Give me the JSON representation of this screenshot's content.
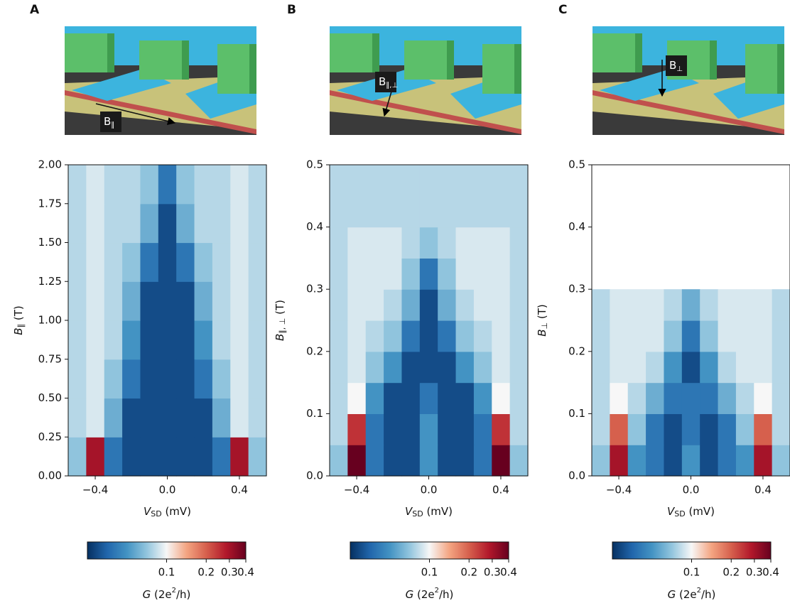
{
  "chart_data": [
    {
      "type": "heatmap",
      "panel_label": "A",
      "inset_label": [
        "B",
        "∥"
      ],
      "xlabel": [
        "V",
        "SD",
        " (mV)"
      ],
      "ylabel": [
        "B",
        "∥",
        " (T)"
      ],
      "x": [
        -0.5,
        -0.4,
        -0.3,
        -0.2,
        -0.1,
        0,
        0.1,
        0.2,
        0.3,
        0.4,
        0.5
      ],
      "y": [
        0.125,
        0.375,
        0.625,
        0.875,
        1.125,
        1.375,
        1.625,
        1.875
      ],
      "values": [
        [
          0.07,
          0.3,
          0.04,
          0.03,
          0.03,
          0.03,
          0.03,
          0.03,
          0.04,
          0.3,
          0.07
        ],
        [
          0.08,
          0.09,
          0.06,
          0.03,
          0.03,
          0.03,
          0.03,
          0.03,
          0.06,
          0.09,
          0.08
        ],
        [
          0.08,
          0.09,
          0.07,
          0.04,
          0.03,
          0.03,
          0.03,
          0.04,
          0.07,
          0.09,
          0.08
        ],
        [
          0.08,
          0.09,
          0.08,
          0.05,
          0.03,
          0.03,
          0.03,
          0.05,
          0.08,
          0.09,
          0.08
        ],
        [
          0.08,
          0.09,
          0.08,
          0.06,
          0.03,
          0.03,
          0.03,
          0.06,
          0.08,
          0.09,
          0.08
        ],
        [
          0.08,
          0.09,
          0.08,
          0.07,
          0.04,
          0.03,
          0.04,
          0.07,
          0.08,
          0.09,
          0.08
        ],
        [
          0.08,
          0.09,
          0.08,
          0.08,
          0.06,
          0.03,
          0.06,
          0.08,
          0.08,
          0.09,
          0.08
        ],
        [
          0.08,
          0.09,
          0.08,
          0.08,
          0.07,
          0.04,
          0.07,
          0.08,
          0.08,
          0.09,
          0.08
        ]
      ],
      "xlim": [
        -0.55,
        0.55
      ],
      "ylim": [
        0,
        2.0
      ],
      "xticks": [
        {
          "value": -0.4,
          "label": "−0.4"
        },
        {
          "value": 0,
          "label": "0.0"
        },
        0.4
      ],
      "yticks": [
        {
          "value": 0,
          "label": "0.00"
        },
        0.25,
        {
          "value": 0.5,
          "label": "0.50"
        },
        0.75,
        {
          "value": 1,
          "label": "1.00"
        },
        1.25,
        {
          "value": 1.5,
          "label": "1.50"
        },
        1.75,
        {
          "value": 2,
          "label": "2.00"
        }
      ],
      "colorbar": {
        "clim": [
          0.025,
          0.4
        ],
        "log": true,
        "ticks": [
          0.1,
          0.2,
          0.3,
          0.4
        ],
        "label": [
          "G",
          " (2e",
          "2",
          "/h)"
        ]
      },
      "colormap": [
        "#053061",
        "#2166ac",
        "#4393c3",
        "#92c5de",
        "#f7f7f7",
        "#f4a582",
        "#d6604d",
        "#b2182b",
        "#67001f"
      ]
    },
    {
      "type": "heatmap",
      "panel_label": "B",
      "inset_label": [
        "B",
        "∥,⊥"
      ],
      "xlabel": [
        "V",
        "SD",
        " (mV)"
      ],
      "ylabel": [
        "B",
        "∥, ⊥",
        " (T)"
      ],
      "x": [
        -0.5,
        -0.4,
        -0.3,
        -0.2,
        -0.1,
        0,
        0.1,
        0.2,
        0.3,
        0.4,
        0.5
      ],
      "y": [
        0.025,
        0.075,
        0.125,
        0.175,
        0.225,
        0.275,
        0.325,
        0.375,
        0.425,
        0.475
      ],
      "values": [
        [
          0.07,
          0.4,
          0.04,
          0.03,
          0.03,
          0.05,
          0.03,
          0.03,
          0.04,
          0.4,
          0.07
        ],
        [
          0.08,
          0.25,
          0.04,
          0.03,
          0.03,
          0.05,
          0.03,
          0.03,
          0.04,
          0.25,
          0.08
        ],
        [
          0.08,
          0.1,
          0.05,
          0.03,
          0.03,
          0.04,
          0.03,
          0.03,
          0.05,
          0.1,
          0.08
        ],
        [
          0.08,
          0.09,
          0.07,
          0.05,
          0.03,
          0.03,
          0.03,
          0.05,
          0.07,
          0.09,
          0.08
        ],
        [
          0.08,
          0.09,
          0.08,
          0.07,
          0.04,
          0.03,
          0.04,
          0.07,
          0.08,
          0.09,
          0.08
        ],
        [
          0.08,
          0.09,
          0.09,
          0.08,
          0.06,
          0.03,
          0.06,
          0.08,
          0.09,
          0.09,
          0.08
        ],
        [
          0.08,
          0.09,
          0.09,
          0.09,
          0.07,
          0.04,
          0.07,
          0.09,
          0.09,
          0.09,
          0.08
        ],
        [
          0.08,
          0.09,
          0.09,
          0.09,
          0.08,
          0.07,
          0.08,
          0.09,
          0.09,
          0.09,
          0.08
        ],
        [
          0.08,
          0.08,
          0.08,
          0.08,
          0.08,
          0.08,
          0.08,
          0.08,
          0.08,
          0.08,
          0.08
        ],
        [
          0.08,
          0.08,
          0.08,
          0.08,
          0.08,
          0.08,
          0.08,
          0.08,
          0.08,
          0.08,
          0.08
        ]
      ],
      "xlim": [
        -0.55,
        0.55
      ],
      "ylim": [
        0,
        0.5
      ],
      "xticks": [
        {
          "value": -0.4,
          "label": "−0.4"
        },
        {
          "value": 0,
          "label": "0.0"
        },
        0.4
      ],
      "yticks": [
        {
          "value": 0,
          "label": "0.0"
        },
        0.1,
        0.2,
        0.3,
        0.4,
        0.5
      ],
      "colorbar": {
        "clim": [
          0.025,
          0.4
        ],
        "log": true,
        "ticks": [
          0.1,
          0.2,
          0.3,
          0.4
        ],
        "label": [
          "G",
          " (2e",
          "2",
          "/h)"
        ]
      },
      "colormap": [
        "#053061",
        "#2166ac",
        "#4393c3",
        "#92c5de",
        "#f7f7f7",
        "#f4a582",
        "#d6604d",
        "#b2182b",
        "#67001f"
      ]
    },
    {
      "type": "heatmap",
      "panel_label": "C",
      "inset_label": [
        "B",
        "⊥"
      ],
      "xlabel": [
        "V",
        "SD",
        " (mV)"
      ],
      "ylabel": [
        "B",
        "⊥",
        " (T)"
      ],
      "x": [
        -0.5,
        -0.4,
        -0.3,
        -0.2,
        -0.1,
        0,
        0.1,
        0.2,
        0.3,
        0.4,
        0.5
      ],
      "y": [
        0.025,
        0.075,
        0.125,
        0.175,
        0.225,
        0.275
      ],
      "values": [
        [
          0.07,
          0.3,
          0.05,
          0.04,
          0.03,
          0.05,
          0.03,
          0.04,
          0.05,
          0.3,
          0.07
        ],
        [
          0.08,
          0.2,
          0.07,
          0.04,
          0.03,
          0.04,
          0.03,
          0.04,
          0.07,
          0.2,
          0.08
        ],
        [
          0.08,
          0.1,
          0.08,
          0.06,
          0.04,
          0.04,
          0.04,
          0.06,
          0.08,
          0.1,
          0.08
        ],
        [
          0.08,
          0.09,
          0.09,
          0.08,
          0.05,
          0.03,
          0.05,
          0.08,
          0.09,
          0.09,
          0.08
        ],
        [
          0.08,
          0.09,
          0.09,
          0.09,
          0.07,
          0.04,
          0.07,
          0.09,
          0.09,
          0.09,
          0.08
        ],
        [
          0.08,
          0.09,
          0.09,
          0.09,
          0.08,
          0.06,
          0.08,
          0.09,
          0.09,
          0.09,
          0.08
        ]
      ],
      "xlim": [
        -0.55,
        0.55
      ],
      "ylim": [
        0,
        0.5
      ],
      "xticks": [
        {
          "value": -0.4,
          "label": "−0.4"
        },
        {
          "value": 0,
          "label": "0.0"
        },
        0.4
      ],
      "yticks": [
        {
          "value": 0,
          "label": "0.0"
        },
        0.1,
        0.2,
        0.3,
        0.4,
        0.5
      ],
      "colorbar": {
        "clim": [
          0.025,
          0.4
        ],
        "log": true,
        "ticks": [
          0.1,
          0.2,
          0.3,
          0.4
        ],
        "label": [
          "G",
          " (2e",
          "2",
          "/h)"
        ]
      },
      "colormap": [
        "#053061",
        "#2166ac",
        "#4393c3",
        "#92c5de",
        "#f7f7f7",
        "#f4a582",
        "#d6604d",
        "#b2182b",
        "#67001f"
      ]
    }
  ]
}
